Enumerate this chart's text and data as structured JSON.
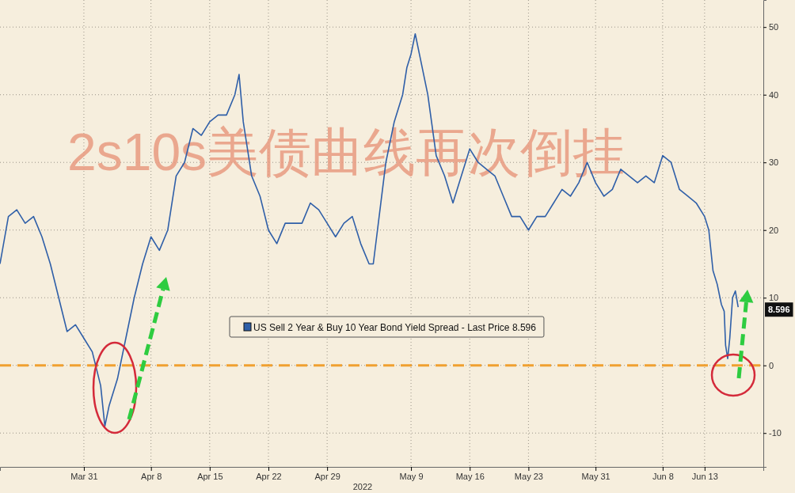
{
  "chart_data": {
    "type": "line",
    "title": "2s10s美债曲线再次倒挂",
    "x": [
      "2022-03-21",
      "2022-03-22",
      "2022-03-23",
      "2022-03-24",
      "2022-03-25",
      "2022-03-26",
      "2022-03-27",
      "2022-03-28",
      "2022-03-29",
      "2022-03-30",
      "2022-03-31",
      "2022-04-01",
      "2022-04-02",
      "2022-04-02T12:00",
      "2022-04-03",
      "2022-04-04",
      "2022-04-05",
      "2022-04-06",
      "2022-04-07",
      "2022-04-08",
      "2022-04-09",
      "2022-04-10",
      "2022-04-11",
      "2022-04-12",
      "2022-04-13",
      "2022-04-14",
      "2022-04-15",
      "2022-04-16",
      "2022-04-17",
      "2022-04-18",
      "2022-04-18T12:00",
      "2022-04-19",
      "2022-04-20",
      "2022-04-21",
      "2022-04-22",
      "2022-04-23",
      "2022-04-24",
      "2022-04-25",
      "2022-04-26",
      "2022-04-27",
      "2022-04-28",
      "2022-04-29",
      "2022-04-30",
      "2022-05-01",
      "2022-05-02",
      "2022-05-03",
      "2022-05-04",
      "2022-05-04T12:00",
      "2022-05-05",
      "2022-05-06",
      "2022-05-07",
      "2022-05-08",
      "2022-05-08T12:00",
      "2022-05-09",
      "2022-05-09T12:00",
      "2022-05-10",
      "2022-05-11",
      "2022-05-12",
      "2022-05-13",
      "2022-05-14",
      "2022-05-15",
      "2022-05-16",
      "2022-05-17",
      "2022-05-18",
      "2022-05-19",
      "2022-05-20",
      "2022-05-21",
      "2022-05-22",
      "2022-05-23",
      "2022-05-24",
      "2022-05-25",
      "2022-05-26",
      "2022-05-27",
      "2022-05-28",
      "2022-05-29",
      "2022-05-30",
      "2022-05-31",
      "2022-06-01",
      "2022-06-02",
      "2022-06-03",
      "2022-06-04",
      "2022-06-05",
      "2022-06-06",
      "2022-06-07",
      "2022-06-08",
      "2022-06-09",
      "2022-06-10",
      "2022-06-11",
      "2022-06-12",
      "2022-06-13",
      "2022-06-13T12:00",
      "2022-06-14",
      "2022-06-14T12:00",
      "2022-06-15",
      "2022-06-15T08:00",
      "2022-06-15T12:00",
      "2022-06-15T18:00",
      "2022-06-16",
      "2022-06-16T08:00",
      "2022-06-16T16:00",
      "2022-06-17"
    ],
    "series": [
      {
        "name": "US Sell 2 Year & Buy 10 Year Bond Yield Spread - Last Price 8.596",
        "color": "#2f5fa8",
        "values": [
          15,
          22,
          23,
          21,
          22,
          19,
          15,
          10,
          5,
          6,
          4,
          2,
          -3,
          -9,
          -6,
          -2,
          4,
          10,
          15,
          19,
          17,
          20,
          28,
          30,
          35,
          34,
          36,
          37,
          37,
          40,
          43,
          36,
          28,
          25,
          20,
          18,
          21,
          21,
          21,
          24,
          23,
          21,
          19,
          21,
          22,
          18,
          15,
          15,
          20,
          30,
          36,
          40,
          44,
          46,
          49,
          46,
          40,
          31,
          28,
          24,
          28,
          32,
          30,
          29,
          28,
          25,
          22,
          22,
          20,
          22,
          22,
          24,
          26,
          25,
          27,
          30,
          27,
          25,
          26,
          29,
          28,
          27,
          28,
          27,
          31,
          30,
          26,
          25,
          24,
          22,
          20,
          14,
          12,
          9,
          8,
          3,
          1,
          4,
          10,
          11,
          8.596
        ]
      }
    ],
    "xlim": [
      "2022-03-21",
      "2022-06-20"
    ],
    "xticks": [
      {
        "value": "2022-03-31",
        "label": "Mar 31"
      },
      {
        "value": "2022-04-08",
        "label": "Apr 8"
      },
      {
        "value": "2022-04-15",
        "label": "Apr 15"
      },
      {
        "value": "2022-04-22",
        "label": "Apr 22"
      },
      {
        "value": "2022-04-29",
        "label": "Apr 29"
      },
      {
        "value": "2022-05-09",
        "label": "May 9"
      },
      {
        "value": "2022-05-16",
        "label": "May 16"
      },
      {
        "value": "2022-05-23",
        "label": "May 23"
      },
      {
        "value": "2022-05-31",
        "label": "May 31"
      },
      {
        "value": "2022-06-08",
        "label": "Jun 8"
      },
      {
        "value": "2022-06-13",
        "label": "Jun 13"
      }
    ],
    "ylim": [
      -15,
      54
    ],
    "yticks": [
      -10,
      0,
      10,
      20,
      30,
      40,
      50
    ],
    "grid": true,
    "legend": "bottom",
    "ref_lines": [
      {
        "axis": "y",
        "value": 0,
        "color": "#f0a030",
        "line_style": "dashed"
      }
    ],
    "annotations": [
      "2022",
      "8.596"
    ]
  }
}
